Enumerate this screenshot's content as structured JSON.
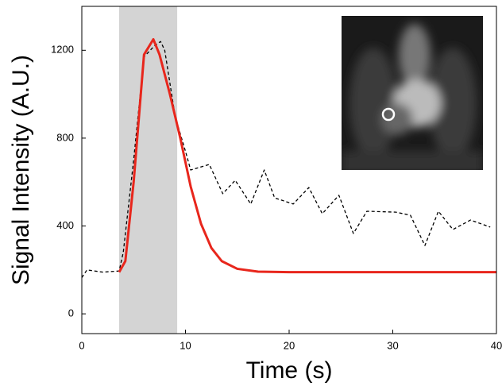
{
  "chart_data": {
    "type": "line",
    "xlabel": "Time (s)",
    "ylabel": "Signal Intensity (A.U.)",
    "xlim": [
      0,
      40
    ],
    "xticks": [
      0,
      10,
      20,
      30,
      40
    ],
    "ylim": [
      -90,
      1400
    ],
    "yticks": [
      0,
      400,
      800,
      1200
    ],
    "shaded_region": [
      3.6,
      9.2
    ],
    "shaded_color": "#d4d4d4",
    "series": [
      {
        "color": "#000000",
        "style": "dashed",
        "x": [
          0,
          0.5,
          2,
          3.6,
          4,
          5,
          6,
          7,
          7.6,
          8,
          9,
          10,
          10.5,
          12.3,
          13.6,
          14.8,
          16.3,
          17.6,
          18.6,
          20.4,
          21.9,
          23.2,
          24.8,
          26.2,
          27.5,
          30.3,
          31.7,
          33.1,
          34.4,
          35.8,
          37.5,
          39.4
        ],
        "values": [
          165,
          200,
          190,
          195,
          280,
          700,
          1170,
          1220,
          1240,
          1200,
          900,
          740,
          655,
          680,
          547,
          608,
          500,
          655,
          528,
          500,
          575,
          456,
          540,
          366,
          467,
          463,
          449,
          311,
          467,
          384,
          427,
          395
        ]
      },
      {
        "color": "#e8261c",
        "style": "solid",
        "x": [
          3.6,
          4.2,
          5,
          6,
          6.9,
          7.5,
          8.5,
          9.5,
          10.5,
          11.5,
          12.5,
          13.5,
          15,
          17,
          20,
          40
        ],
        "values": [
          190,
          240,
          600,
          1180,
          1250,
          1180,
          1000,
          800,
          580,
          410,
          300,
          240,
          205,
          192,
          190,
          190
        ]
      }
    ]
  }
}
